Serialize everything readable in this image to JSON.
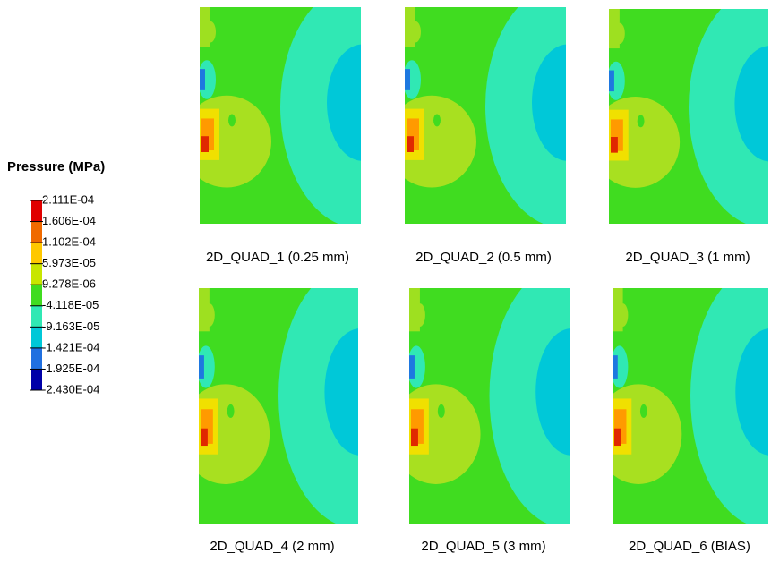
{
  "legend": {
    "title": "Pressure (MPa)",
    "labels": [
      "2.111E-04",
      "1.606E-04",
      "1.102E-04",
      "5.973E-05",
      "9.278E-06",
      "-4.118E-05",
      "-9.163E-05",
      "-1.421E-04",
      "-1.925E-04",
      "-2.430E-04"
    ]
  },
  "panels": [
    {
      "caption": "2D_QUAD_1 (0.25 mm)"
    },
    {
      "caption": "2D_QUAD_2 (0.5 mm)"
    },
    {
      "caption": "2D_QUAD_3 (1 mm)"
    },
    {
      "caption": "2D_QUAD_4 (2 mm)"
    },
    {
      "caption": "2D_QUAD_5 (3 mm)"
    },
    {
      "caption": "2D_QUAD_6 (BIAS)"
    }
  ]
}
